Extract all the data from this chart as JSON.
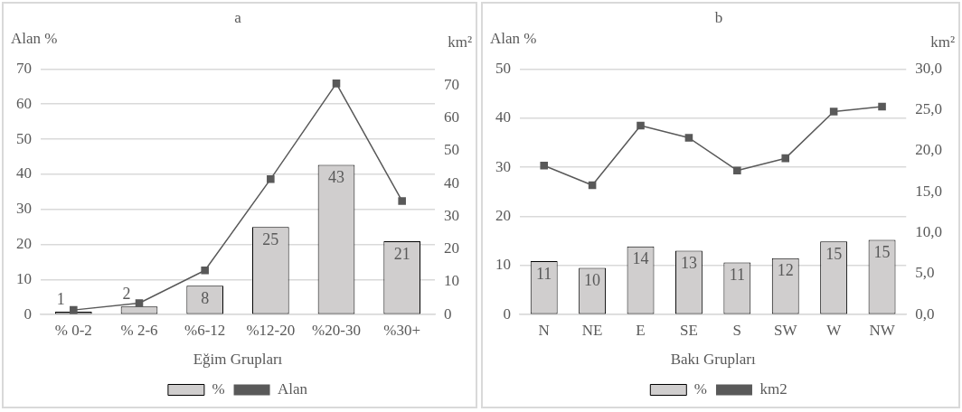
{
  "chart_data": [
    {
      "type": "bar",
      "title": "a",
      "xlabel": "Eğim Grupları",
      "ylabel": "Alan %",
      "y2label": "km²",
      "categories": [
        "% 0-2",
        "% 2-6",
        "%6-12",
        "%12-20",
        "%20-30",
        "%30+"
      ],
      "series": [
        {
          "name": "%",
          "color": "#d0cece",
          "values": [
            0.8,
            2.3,
            8.2,
            25.0,
            42.7,
            20.9
          ],
          "value_labels": [
            "1",
            "2",
            "8",
            "25",
            "43",
            "21"
          ]
        },
        {
          "name": "Alan",
          "type": "line",
          "axis": "y2",
          "color": "#595959",
          "values": [
            1.4,
            3.5,
            13.5,
            41.4,
            70.6,
            34.7
          ]
        }
      ],
      "ylim": [
        0,
        70
      ],
      "yticks": [
        0,
        10,
        20,
        30,
        40,
        50,
        60,
        70
      ],
      "y2lim": [
        0,
        75
      ],
      "y2ticks": [
        0,
        10,
        20,
        30,
        40,
        50,
        60,
        70
      ],
      "grid": "y",
      "legend": "bottom",
      "marker": "square"
    },
    {
      "type": "bar",
      "title": "b",
      "xlabel": "Bakı Grupları",
      "ylabel": "Alan %",
      "y2label": "km²",
      "categories": [
        "N",
        "NE",
        "E",
        "SE",
        "S",
        "SW",
        "W",
        "NW"
      ],
      "series": [
        {
          "name": "%",
          "color": "#d0cece",
          "values": [
            10.9,
            9.5,
            13.9,
            13.0,
            10.6,
            11.5,
            14.9,
            15.2
          ],
          "value_labels": [
            "11",
            "10",
            "14",
            "13",
            "11",
            "12",
            "15",
            "15"
          ]
        },
        {
          "name": "km2",
          "type": "line",
          "axis": "y2",
          "color": "#595959",
          "values": [
            18.2,
            15.8,
            23.1,
            21.6,
            17.6,
            19.1,
            24.8,
            25.4
          ]
        }
      ],
      "ylim": [
        0,
        50
      ],
      "yticks": [
        0,
        10,
        20,
        30,
        40,
        50
      ],
      "y2lim": [
        0,
        30
      ],
      "y2ticks": [
        {
          "value": 0,
          "label": "0,0"
        },
        {
          "value": 5,
          "label": "5,0"
        },
        {
          "value": 10,
          "label": "10,0"
        },
        {
          "value": 15,
          "label": "15,0"
        },
        {
          "value": 20,
          "label": "20,0"
        },
        {
          "value": 25,
          "label": "25,0"
        },
        {
          "value": 30,
          "label": "30,0"
        }
      ],
      "grid": "y",
      "legend": "bottom",
      "marker": "square"
    }
  ]
}
